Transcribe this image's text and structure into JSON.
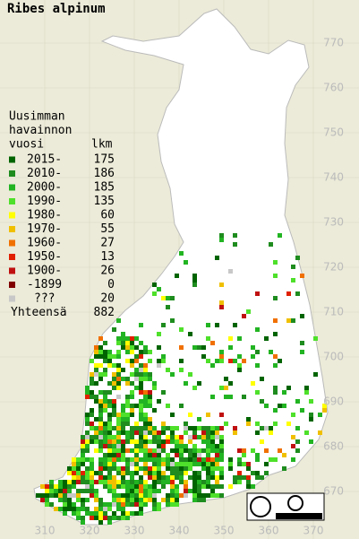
{
  "title": "Ribes alpinum",
  "legend": {
    "heading": [
      "Uusimman",
      "havainnon",
      "vuosi"
    ],
    "count_heading": "lkm",
    "rows": [
      {
        "label": "2015-",
        "count": 175,
        "color": "#006400"
      },
      {
        "label": "2010-",
        "count": 186,
        "color": "#1e8c1e"
      },
      {
        "label": "2000-",
        "count": 185,
        "color": "#22b422"
      },
      {
        "label": "1990-",
        "count": 135,
        "color": "#4ee02a"
      },
      {
        "label": "1980-",
        "count": 60,
        "color": "#ffff00"
      },
      {
        "label": "1970-",
        "count": 55,
        "color": "#f0c000"
      },
      {
        "label": "1960-",
        "count": 27,
        "color": "#f07000"
      },
      {
        "label": "1950-",
        "count": 13,
        "color": "#e02000"
      },
      {
        "label": "1900-",
        "count": 26,
        "color": "#c01010"
      },
      {
        "label": "-1899",
        "count": 0,
        "color": "#800000"
      },
      {
        "label": "???",
        "count": 20,
        "color": "#c8c8c8"
      }
    ],
    "total_label": "Yhteensä",
    "total": 882
  },
  "map": {
    "xticks": [
      310,
      320,
      330,
      340,
      350,
      360,
      370
    ],
    "yticks": [
      670,
      680,
      690,
      700,
      710,
      720,
      730,
      740,
      750,
      760,
      770
    ]
  }
}
